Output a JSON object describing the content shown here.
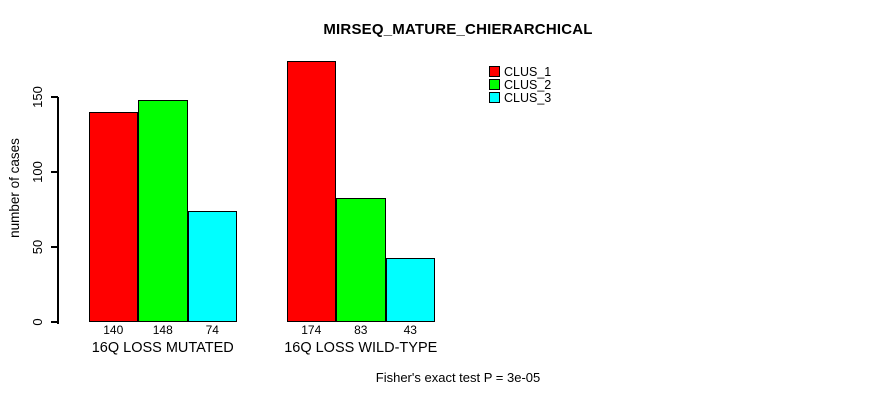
{
  "chart_data": {
    "type": "bar",
    "title": "MIRSEQ_MATURE_CHIERARCHICAL",
    "categories": [
      "16Q LOSS MUTATED",
      "16Q LOSS WILD-TYPE"
    ],
    "series": [
      {
        "name": "CLUS_1",
        "color": "#FF0000",
        "values": [
          140,
          174
        ]
      },
      {
        "name": "CLUS_2",
        "color": "#00FF00",
        "values": [
          148,
          83
        ]
      },
      {
        "name": "CLUS_3",
        "color": "#00FFFF",
        "values": [
          74,
          43
        ]
      }
    ],
    "xlabel": "",
    "ylabel": "number of cases",
    "ylim": [
      0,
      150
    ],
    "yticks": [
      0,
      50,
      100,
      150
    ],
    "grid": false,
    "legend_position": "top-right",
    "bar_value_labels": [
      [
        140,
        148,
        74
      ],
      [
        174,
        83,
        43
      ]
    ],
    "annotation": "Fisher's exact test P = 3e-05"
  }
}
